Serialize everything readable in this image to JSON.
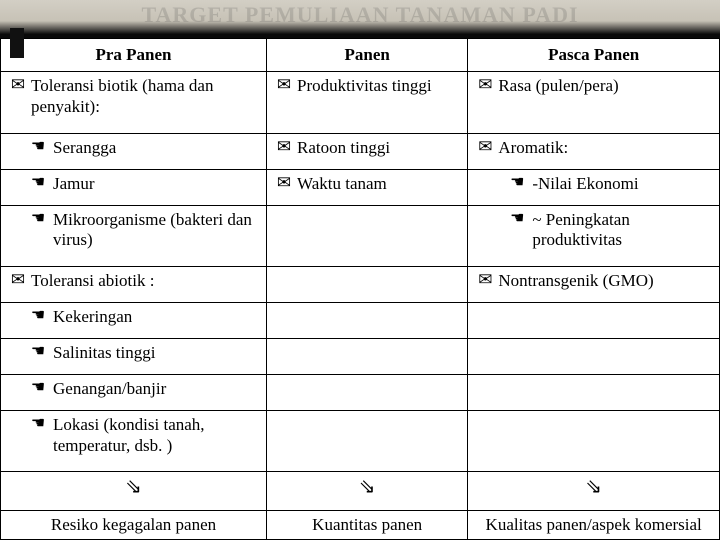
{
  "title": "TARGET PEMULIAAN TANAMAN PADI",
  "bullets": {
    "envelope": "✉",
    "hand": "☚",
    "arrow": "⇘"
  },
  "colors": {
    "border": "#000000",
    "title_ghost": "rgba(60,60,60,0.18)"
  },
  "headers": {
    "c1": "Pra Panen",
    "c2": "Panen",
    "c3": "Pasca Panen"
  },
  "rows": [
    {
      "c1": {
        "lvl": 1,
        "b": "envelope",
        "text": " Toleransi biotik (hama dan penyakit):"
      },
      "c2": {
        "lvl": 1,
        "b": "envelope",
        "text": "Produktivitas tinggi"
      },
      "c3": {
        "lvl": 1,
        "b": "envelope",
        "text": "Rasa (pulen/pera)"
      }
    },
    {
      "c1": {
        "lvl": 2,
        "b": "hand",
        "text": "Serangga"
      },
      "c2": {
        "lvl": 1,
        "b": "envelope",
        "text": "Ratoon tinggi"
      },
      "c3": {
        "lvl": 1,
        "b": "envelope",
        "text": "Aromatik:"
      }
    },
    {
      "c1": {
        "lvl": 2,
        "b": "hand",
        "text": "Jamur"
      },
      "c2": {
        "lvl": 1,
        "b": "envelope",
        "text": "Waktu tanam"
      },
      "c3": {
        "lvl": 3,
        "b": "hand",
        "text": "-Nilai Ekonomi"
      }
    },
    {
      "c1": {
        "lvl": 2,
        "b": "hand",
        "text": "Mikroorganisme (bakteri dan virus)"
      },
      "c2": null,
      "c3": {
        "lvl": 3,
        "b": "hand",
        "text": "~ Peningkatan produktivitas"
      }
    },
    {
      "c1": {
        "lvl": 1,
        "b": "envelope",
        "text": " Toleransi abiotik :"
      },
      "c2": null,
      "c3": {
        "lvl": 1,
        "b": "envelope",
        "text": "Nontransgenik (GMO)"
      }
    },
    {
      "c1": {
        "lvl": 2,
        "b": "hand",
        "text": "Kekeringan"
      },
      "c2": null,
      "c3": null
    },
    {
      "c1": {
        "lvl": 2,
        "b": "hand",
        "text": "Salinitas  tinggi"
      },
      "c2": null,
      "c3": null
    },
    {
      "c1": {
        "lvl": 2,
        "b": "hand",
        "text": "Genangan/banjir"
      },
      "c2": null,
      "c3": null
    },
    {
      "c1": {
        "lvl": 2,
        "b": "hand",
        "text": "Lokasi (kondisi tanah, temperatur, dsb. )"
      },
      "c2": null,
      "c3": null
    },
    {
      "c1": {
        "lvl": 1,
        "b": "arrow",
        "text": "",
        "center": true
      },
      "c2": {
        "lvl": 1,
        "b": "arrow",
        "text": "",
        "center": true
      },
      "c3": {
        "lvl": 1,
        "b": "arrow",
        "text": "",
        "center": true
      }
    }
  ],
  "footer": {
    "c1": "Resiko kegagalan panen",
    "c2": "Kuantitas panen",
    "c3": "Kualitas panen/aspek komersial"
  }
}
